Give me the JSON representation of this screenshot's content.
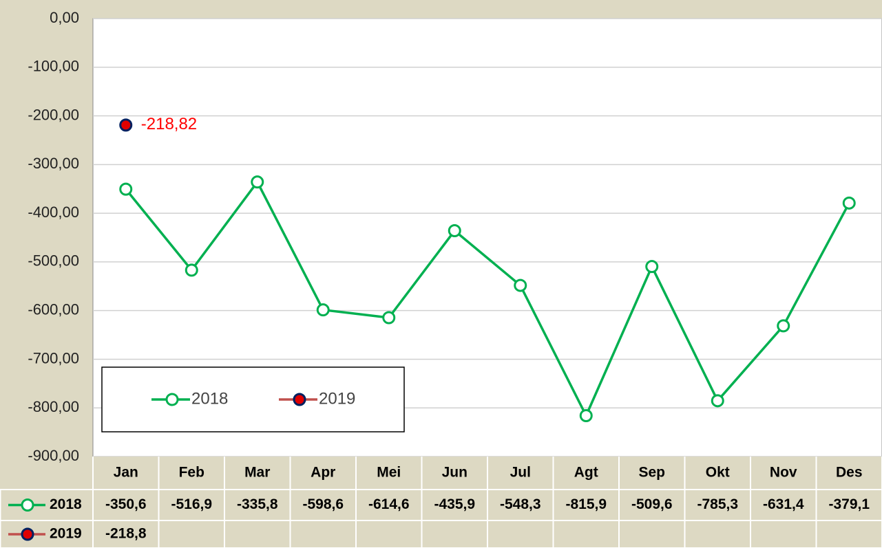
{
  "chart_data": {
    "type": "line",
    "categories": [
      "Jan",
      "Feb",
      "Mar",
      "Apr",
      "Mei",
      "Jun",
      "Jul",
      "Agt",
      "Sep",
      "Okt",
      "Nov",
      "Des"
    ],
    "series": [
      {
        "name": "2018",
        "color": "#00b050",
        "marker_fill": "#ffffff",
        "marker_stroke": "#00b050",
        "values": [
          -350.6,
          -516.9,
          -335.8,
          -598.6,
          -614.6,
          -435.9,
          -548.3,
          -815.9,
          -509.6,
          -785.3,
          -631.4,
          -379.1
        ],
        "value_labels": [
          "-350,6",
          "-516,9",
          "-335,8",
          "-598,6",
          "-614,6",
          "-435,9",
          "-548,3",
          "-815,9",
          "-509,6",
          "-785,3",
          "-631,4",
          "-379,1"
        ]
      },
      {
        "name": "2019",
        "color": "#c0504d",
        "marker_fill": "#e00000",
        "marker_stroke": "#002060",
        "values": [
          -218.82,
          null,
          null,
          null,
          null,
          null,
          null,
          null,
          null,
          null,
          null,
          null
        ],
        "value_labels": [
          "-218,8",
          null,
          null,
          null,
          null,
          null,
          null,
          null,
          null,
          null,
          null,
          null
        ],
        "point_labels": [
          "-218,82",
          null,
          null,
          null,
          null,
          null,
          null,
          null,
          null,
          null,
          null,
          null
        ],
        "point_label_color": "#ff0000"
      }
    ],
    "ylim": [
      -900,
      0
    ],
    "yticks": [
      {
        "value": 0,
        "label": "0,00"
      },
      {
        "value": -100,
        "label": "-100,00"
      },
      {
        "value": -200,
        "label": "-200,00"
      },
      {
        "value": -300,
        "label": "-300,00"
      },
      {
        "value": -400,
        "label": "-400,00"
      },
      {
        "value": -500,
        "label": "-500,00"
      },
      {
        "value": -600,
        "label": "-600,00"
      },
      {
        "value": -700,
        "label": "-700,00"
      },
      {
        "value": -800,
        "label": "-800,00"
      },
      {
        "value": -900,
        "label": "-900,00"
      }
    ],
    "grid": true,
    "legend": "lower left"
  }
}
